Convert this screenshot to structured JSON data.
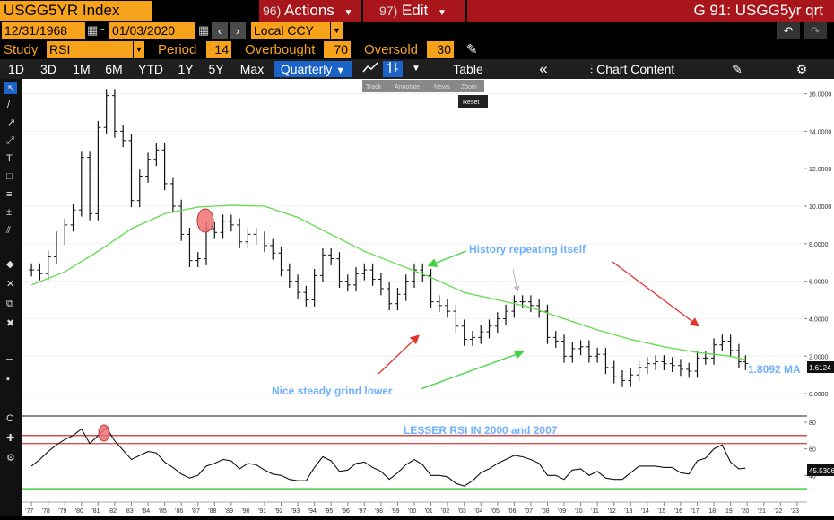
{
  "header": {
    "ticker": "USGG5YR Index",
    "actions_num": "96)",
    "actions_label": "Actions",
    "edit_num": "97)",
    "edit_label": "Edit",
    "title": "G 91: USGG5yr qrt"
  },
  "range": {
    "start": "12/31/1968",
    "end": "01/03/2020",
    "currency": "Local CCY"
  },
  "study": {
    "study_label": "Study",
    "study_value": "RSI",
    "period_label": "Period",
    "period_value": "14",
    "overbought_label": "Overbought",
    "overbought_value": "70",
    "oversold_label": "Oversold",
    "oversold_value": "30"
  },
  "toolbar": {
    "periods": [
      "1D",
      "3D",
      "1M",
      "6M",
      "YTD",
      "1Y",
      "5Y",
      "Max"
    ],
    "frequency": "Quarterly",
    "table_label": "Table",
    "chart_content_label": "Chart Content",
    "menu_items": [
      "Track",
      "Annotate",
      "News",
      "Zoom"
    ],
    "reset_label": "Reset"
  },
  "colors": {
    "ma_line": "#5fdc4a",
    "annotation_text": "#6fb0ff",
    "arrow_red": "#e5322d",
    "arrow_green": "#3ed43e",
    "overbought_line": "#c0141a",
    "oversold_line": "#22c422",
    "highlight_circle": "#f07070"
  },
  "chart_data": [
    {
      "type": "line",
      "subtype": "ohlc-bar",
      "x_ticks": [
        "'77",
        "'78",
        "'79",
        "'80",
        "'81",
        "'82",
        "'83",
        "'84",
        "'85",
        "'86",
        "'87",
        "'88",
        "'89",
        "'90",
        "'91",
        "'92",
        "'93",
        "'94",
        "'95",
        "'96",
        "'97",
        "'98",
        "'99",
        "'00",
        "'01",
        "'02",
        "'03",
        "'04",
        "'05",
        "'06",
        "'07",
        "'08",
        "'09",
        "'10",
        "'11",
        "'12",
        "'13",
        "'14",
        "'15",
        "'16",
        "'17",
        "'18",
        "'19",
        "'20",
        "'21",
        "'22",
        "'23"
      ],
      "y_ticks": [
        "16.0000",
        "14.0000",
        "12.0000",
        "10.0000",
        "8.0000",
        "6.0000",
        "4.0000",
        "2.0000",
        "0.0000"
      ],
      "ylim": [
        -1.0,
        16.6
      ],
      "xlim": [
        1976.4,
        2023.6
      ],
      "series": [
        {
          "values": [
            [
              1977.0,
              6.6
            ],
            [
              1977.5,
              6.4
            ],
            [
              1978.0,
              7.3
            ],
            [
              1978.5,
              8.3
            ],
            [
              1979.0,
              9.0
            ],
            [
              1979.5,
              9.8
            ],
            [
              1980.0,
              12.6
            ],
            [
              1980.5,
              9.6
            ],
            [
              1981.0,
              14.2
            ],
            [
              1981.5,
              15.9
            ],
            [
              1982.0,
              14.0
            ],
            [
              1982.5,
              13.5
            ],
            [
              1983.0,
              10.3
            ],
            [
              1983.5,
              11.6
            ],
            [
              1984.0,
              12.5
            ],
            [
              1984.5,
              13.0
            ],
            [
              1985.0,
              11.2
            ],
            [
              1985.5,
              10.0
            ],
            [
              1986.0,
              8.5
            ],
            [
              1986.5,
              7.1
            ],
            [
              1987.0,
              7.2
            ],
            [
              1987.5,
              8.8
            ],
            [
              1988.0,
              8.6
            ],
            [
              1988.5,
              9.2
            ],
            [
              1989.0,
              9.0
            ],
            [
              1989.5,
              8.1
            ],
            [
              1990.0,
              8.5
            ],
            [
              1990.5,
              8.3
            ],
            [
              1991.0,
              7.9
            ],
            [
              1991.5,
              7.5
            ],
            [
              1992.0,
              6.6
            ],
            [
              1992.5,
              6.0
            ],
            [
              1993.0,
              5.4
            ],
            [
              1993.5,
              5.0
            ],
            [
              1994.0,
              6.3
            ],
            [
              1994.5,
              7.4
            ],
            [
              1995.0,
              7.2
            ],
            [
              1995.5,
              6.0
            ],
            [
              1996.0,
              5.8
            ],
            [
              1996.5,
              6.4
            ],
            [
              1997.0,
              6.6
            ],
            [
              1997.5,
              6.1
            ],
            [
              1998.0,
              5.6
            ],
            [
              1998.5,
              4.8
            ],
            [
              1999.0,
              5.3
            ],
            [
              1999.5,
              6.0
            ],
            [
              2000.0,
              6.6
            ],
            [
              2000.5,
              6.3
            ],
            [
              2001.0,
              4.9
            ],
            [
              2001.5,
              4.7
            ],
            [
              2002.0,
              4.4
            ],
            [
              2002.5,
              3.6
            ],
            [
              2003.0,
              2.9
            ],
            [
              2003.5,
              3.0
            ],
            [
              2004.0,
              3.3
            ],
            [
              2004.5,
              3.6
            ],
            [
              2005.0,
              4.0
            ],
            [
              2005.5,
              4.4
            ],
            [
              2006.0,
              4.9
            ],
            [
              2006.5,
              4.9
            ],
            [
              2007.0,
              4.7
            ],
            [
              2007.5,
              4.4
            ],
            [
              2008.0,
              3.0
            ],
            [
              2008.5,
              2.8
            ],
            [
              2009.0,
              2.0
            ],
            [
              2009.5,
              2.4
            ],
            [
              2010.0,
              2.5
            ],
            [
              2010.5,
              2.0
            ],
            [
              2011.0,
              2.1
            ],
            [
              2011.5,
              1.4
            ],
            [
              2012.0,
              0.9
            ],
            [
              2012.5,
              0.7
            ],
            [
              2013.0,
              1.0
            ],
            [
              2013.5,
              1.4
            ],
            [
              2014.0,
              1.6
            ],
            [
              2014.5,
              1.7
            ],
            [
              2015.0,
              1.6
            ],
            [
              2015.5,
              1.5
            ],
            [
              2016.0,
              1.3
            ],
            [
              2016.5,
              1.2
            ],
            [
              2017.0,
              1.9
            ],
            [
              2017.5,
              1.9
            ],
            [
              2018.0,
              2.6
            ],
            [
              2018.5,
              2.8
            ],
            [
              2019.0,
              2.3
            ],
            [
              2019.5,
              1.7
            ],
            [
              2019.9,
              1.61
            ]
          ]
        },
        {
          "name": "MA",
          "values": [
            [
              1977.0,
              5.8
            ],
            [
              1979.0,
              6.5
            ],
            [
              1981.0,
              7.6
            ],
            [
              1983.0,
              8.8
            ],
            [
              1985.0,
              9.6
            ],
            [
              1987.0,
              9.95
            ],
            [
              1989.0,
              10.05
            ],
            [
              1991.0,
              10.0
            ],
            [
              1993.0,
              9.4
            ],
            [
              1995.0,
              8.5
            ],
            [
              1997.0,
              7.6
            ],
            [
              1999.0,
              6.9
            ],
            [
              2001.0,
              6.2
            ],
            [
              2003.0,
              5.4
            ],
            [
              2005.0,
              5.0
            ],
            [
              2007.0,
              4.6
            ],
            [
              2009.0,
              4.0
            ],
            [
              2011.0,
              3.4
            ],
            [
              2013.0,
              2.9
            ],
            [
              2015.0,
              2.5
            ],
            [
              2017.0,
              2.2
            ],
            [
              2019.0,
              2.0
            ],
            [
              2019.9,
              1.81
            ]
          ]
        }
      ],
      "last_price": "1.6124",
      "ma_value": "1.8092",
      "ma_label": "1.8092 MA",
      "annotations": [
        "History repeating itself",
        "Nice steady grind lower"
      ]
    },
    {
      "type": "line",
      "y_ticks": [
        "80",
        "60",
        "40"
      ],
      "ylim": [
        24,
        82
      ],
      "overbought": 70,
      "oversold": 30,
      "last_value": "45.5306",
      "annotation": "LESSER RSI IN 2000 and 2007",
      "series": [
        {
          "name": "RSI",
          "values": [
            [
              1977.0,
              47
            ],
            [
              1977.5,
              52
            ],
            [
              1978.0,
              58
            ],
            [
              1978.5,
              63
            ],
            [
              1979.0,
              67
            ],
            [
              1979.5,
              70
            ],
            [
              1980.0,
              75
            ],
            [
              1980.5,
              64
            ],
            [
              1981.0,
              70
            ],
            [
              1981.5,
              76
            ],
            [
              1982.0,
              66
            ],
            [
              1982.5,
              59
            ],
            [
              1983.0,
              52
            ],
            [
              1983.5,
              55
            ],
            [
              1984.0,
              58
            ],
            [
              1984.5,
              57
            ],
            [
              1985.0,
              50
            ],
            [
              1985.5,
              46
            ],
            [
              1986.0,
              41
            ],
            [
              1986.5,
              38
            ],
            [
              1987.0,
              40
            ],
            [
              1987.5,
              47
            ],
            [
              1988.0,
              49
            ],
            [
              1988.5,
              52
            ],
            [
              1989.0,
              51
            ],
            [
              1989.5,
              45
            ],
            [
              1990.0,
              49
            ],
            [
              1990.5,
              48
            ],
            [
              1991.0,
              44
            ],
            [
              1991.5,
              41
            ],
            [
              1992.0,
              40
            ],
            [
              1992.5,
              37
            ],
            [
              1993.0,
              36
            ],
            [
              1993.5,
              36
            ],
            [
              1994.0,
              46
            ],
            [
              1994.5,
              54
            ],
            [
              1995.0,
              51
            ],
            [
              1995.5,
              43
            ],
            [
              1996.0,
              44
            ],
            [
              1996.5,
              49
            ],
            [
              1997.0,
              50
            ],
            [
              1997.5,
              46
            ],
            [
              1998.0,
              43
            ],
            [
              1998.5,
              37
            ],
            [
              1999.0,
              42
            ],
            [
              1999.5,
              48
            ],
            [
              2000.0,
              52
            ],
            [
              2000.5,
              48
            ],
            [
              2001.0,
              40
            ],
            [
              2001.5,
              40
            ],
            [
              2002.0,
              39
            ],
            [
              2002.5,
              34
            ],
            [
              2003.0,
              32
            ],
            [
              2003.5,
              36
            ],
            [
              2004.0,
              42
            ],
            [
              2004.5,
              45
            ],
            [
              2005.0,
              49
            ],
            [
              2005.5,
              52
            ],
            [
              2006.0,
              55
            ],
            [
              2006.5,
              54
            ],
            [
              2007.0,
              52
            ],
            [
              2007.5,
              49
            ],
            [
              2008.0,
              40
            ],
            [
              2008.5,
              40
            ],
            [
              2009.0,
              37
            ],
            [
              2009.5,
              44
            ],
            [
              2010.0,
              45
            ],
            [
              2010.5,
              40
            ],
            [
              2011.0,
              43
            ],
            [
              2011.5,
              38
            ],
            [
              2012.0,
              37
            ],
            [
              2012.5,
              37
            ],
            [
              2013.0,
              42
            ],
            [
              2013.5,
              47
            ],
            [
              2014.0,
              47
            ],
            [
              2014.5,
              47
            ],
            [
              2015.0,
              46
            ],
            [
              2015.5,
              46
            ],
            [
              2016.0,
              42
            ],
            [
              2016.5,
              41
            ],
            [
              2017.0,
              51
            ],
            [
              2017.5,
              53
            ],
            [
              2018.0,
              60
            ],
            [
              2018.5,
              63
            ],
            [
              2019.0,
              50
            ],
            [
              2019.5,
              45
            ],
            [
              2019.9,
              45.5
            ]
          ]
        }
      ]
    }
  ]
}
